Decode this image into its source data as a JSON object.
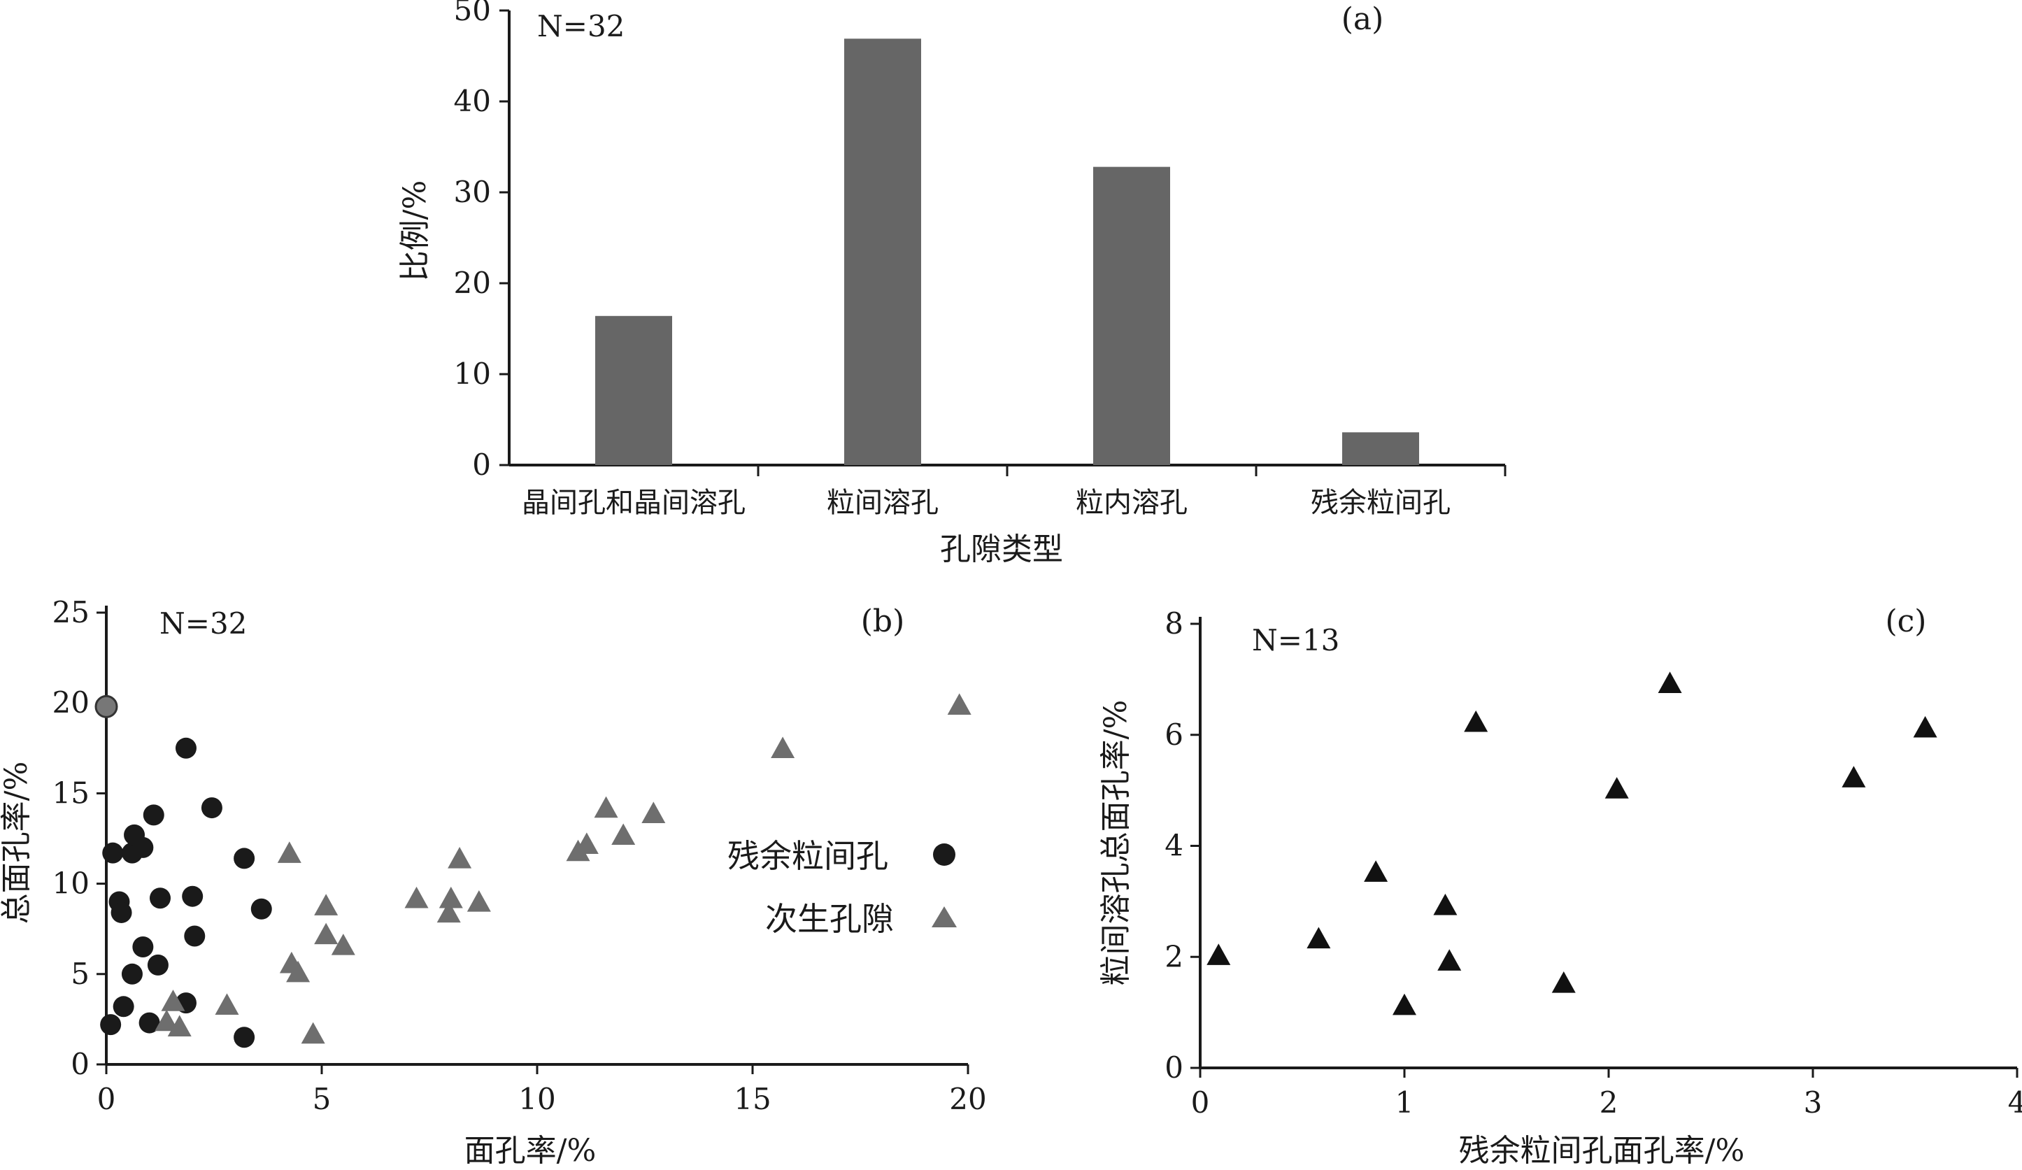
{
  "chart_data": [
    {
      "type": "bar",
      "panel": "(a)",
      "annotation": "N=32",
      "categories": [
        "晶间孔和晶间溶孔",
        "粒间溶孔",
        "粒内溶孔",
        "残余粒间孔"
      ],
      "values": [
        16.4,
        46.9,
        32.8,
        3.6
      ],
      "xlabel": "孔隙类型",
      "ylabel": "比例/%",
      "ylim": [
        0,
        50
      ],
      "yticks": [
        "0",
        "10",
        "20",
        "30",
        "40",
        "50"
      ],
      "bar_color": "#666666"
    },
    {
      "type": "scatter",
      "panel": "(b)",
      "annotation": "N=32",
      "xlabel": "面孔率/%",
      "ylabel": "总面孔率/%",
      "xlim": [
        0,
        20
      ],
      "ylim": [
        0,
        25
      ],
      "xticks": [
        "0",
        "5",
        "10",
        "15",
        "20"
      ],
      "yticks": [
        "0",
        "5",
        "10",
        "15",
        "20",
        "25"
      ],
      "legend_position": "right",
      "series": [
        {
          "name": "残余粒间孔",
          "marker": "circle",
          "color": "#1a1a1a",
          "points": [
            [
              0.1,
              2.2
            ],
            [
              0.15,
              11.7
            ],
            [
              0.3,
              9.0
            ],
            [
              0.35,
              8.4
            ],
            [
              0.4,
              3.2
            ],
            [
              0.6,
              5.0
            ],
            [
              0.6,
              11.7
            ],
            [
              0.65,
              12.7
            ],
            [
              0.85,
              6.5
            ],
            [
              0.85,
              12.0
            ],
            [
              1.0,
              2.3
            ],
            [
              1.1,
              13.8
            ],
            [
              1.2,
              5.5
            ],
            [
              1.25,
              9.2
            ],
            [
              1.85,
              3.4
            ],
            [
              1.85,
              17.5
            ],
            [
              2.0,
              9.3
            ],
            [
              2.05,
              7.1
            ],
            [
              2.45,
              14.2
            ],
            [
              3.2,
              1.5
            ],
            [
              3.2,
              11.4
            ],
            [
              3.6,
              8.6
            ]
          ],
          "highlight": {
            "x": 0.0,
            "y": 19.8,
            "color": "#777777"
          }
        },
        {
          "name": "次生孔隙",
          "marker": "triangle",
          "color": "#6e6e6e",
          "points": [
            [
              1.4,
              2.3
            ],
            [
              1.55,
              3.4
            ],
            [
              1.7,
              2.0
            ],
            [
              2.8,
              3.2
            ],
            [
              4.25,
              11.6
            ],
            [
              4.3,
              5.5
            ],
            [
              4.45,
              5.0
            ],
            [
              4.8,
              1.6
            ],
            [
              5.1,
              7.1
            ],
            [
              5.1,
              8.7
            ],
            [
              5.5,
              6.5
            ],
            [
              7.2,
              9.1
            ],
            [
              7.95,
              8.3
            ],
            [
              8.0,
              9.1
            ],
            [
              8.2,
              11.3
            ],
            [
              8.65,
              8.9
            ],
            [
              10.95,
              11.7
            ],
            [
              11.15,
              12.1
            ],
            [
              11.6,
              14.1
            ],
            [
              12.0,
              12.6
            ],
            [
              12.7,
              13.8
            ],
            [
              15.7,
              17.4
            ],
            [
              19.8,
              19.8
            ]
          ]
        }
      ]
    },
    {
      "type": "scatter",
      "panel": "(c)",
      "annotation": "N=13",
      "xlabel": "残余粒间孔面孔率/%",
      "ylabel": "粒间溶孔总面孔率/%",
      "xlim": [
        0,
        4
      ],
      "ylim": [
        0,
        8
      ],
      "xticks": [
        "0",
        "1",
        "2",
        "3",
        "4"
      ],
      "yticks": [
        "0",
        "2",
        "4",
        "6",
        "8"
      ],
      "series": [
        {
          "marker": "triangle",
          "color": "#111111",
          "points": [
            [
              0.09,
              2.0
            ],
            [
              0.58,
              2.3
            ],
            [
              0.86,
              3.5
            ],
            [
              1.0,
              1.1
            ],
            [
              1.2,
              2.9
            ],
            [
              1.22,
              1.9
            ],
            [
              1.35,
              6.2
            ],
            [
              1.78,
              1.5
            ],
            [
              2.04,
              5.0
            ],
            [
              2.3,
              6.9
            ],
            [
              3.2,
              5.2
            ],
            [
              3.55,
              6.1
            ]
          ]
        }
      ]
    }
  ]
}
